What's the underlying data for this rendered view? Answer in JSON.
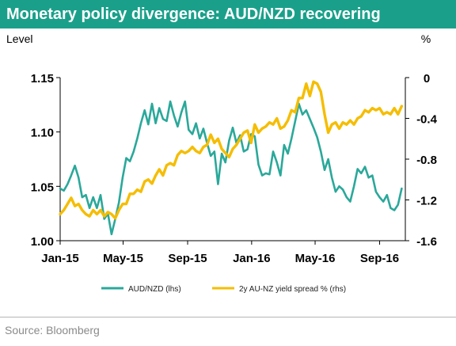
{
  "title": "Monetary policy divergence: AUD/NZD recovering",
  "source": "Source: Bloomberg",
  "colors": {
    "title_bg": "#1aa08a",
    "audnzd": "#2aa89a",
    "spread": "#f5bd00"
  },
  "chart_data": {
    "type": "line",
    "left_axis": {
      "label": "Level",
      "ylim": [
        1.0,
        1.15
      ],
      "ticks": [
        "1.00",
        "1.05",
        "1.10",
        "1.15"
      ],
      "tick_values": [
        1.0,
        1.05,
        1.1,
        1.15
      ]
    },
    "right_axis": {
      "label": "%",
      "ylim": [
        -1.6,
        0
      ],
      "ticks": [
        "-1.6",
        "-1.2",
        "-0.8",
        "-0.4",
        "0"
      ],
      "tick_values": [
        -1.6,
        -1.2,
        -0.8,
        -0.4,
        0
      ]
    },
    "x_range": [
      "2015-01-01",
      "2016-10-20"
    ],
    "x_ticks": [
      {
        "label": "Jan-15",
        "date": "2015-01-01"
      },
      {
        "label": "May-15",
        "date": "2015-05-01"
      },
      {
        "label": "Sep-15",
        "date": "2015-09-01"
      },
      {
        "label": "Jan-16",
        "date": "2016-01-01"
      },
      {
        "label": "May-16",
        "date": "2016-05-01"
      },
      {
        "label": "Sep-16",
        "date": "2016-09-01"
      }
    ],
    "grid": false,
    "legend_position": "bottom",
    "series": [
      {
        "name": "AUD/NZD (lhs)",
        "axis": "left",
        "x": [
          "2015-01-01",
          "2015-01-08",
          "2015-01-15",
          "2015-01-22",
          "2015-01-29",
          "2015-02-05",
          "2015-02-12",
          "2015-02-19",
          "2015-02-26",
          "2015-03-05",
          "2015-03-12",
          "2015-03-19",
          "2015-03-26",
          "2015-04-02",
          "2015-04-09",
          "2015-04-16",
          "2015-04-23",
          "2015-04-30",
          "2015-05-07",
          "2015-05-14",
          "2015-05-21",
          "2015-05-28",
          "2015-06-04",
          "2015-06-11",
          "2015-06-18",
          "2015-06-25",
          "2015-07-02",
          "2015-07-09",
          "2015-07-16",
          "2015-07-23",
          "2015-07-30",
          "2015-08-06",
          "2015-08-13",
          "2015-08-20",
          "2015-08-27",
          "2015-09-03",
          "2015-09-10",
          "2015-09-17",
          "2015-09-24",
          "2015-10-01",
          "2015-10-08",
          "2015-10-15",
          "2015-10-22",
          "2015-10-29",
          "2015-11-05",
          "2015-11-12",
          "2015-11-19",
          "2015-11-26",
          "2015-12-03",
          "2015-12-10",
          "2015-12-17",
          "2015-12-24",
          "2015-12-31",
          "2016-01-07",
          "2016-01-14",
          "2016-01-21",
          "2016-01-28",
          "2016-02-04",
          "2016-02-11",
          "2016-02-18",
          "2016-02-25",
          "2016-03-03",
          "2016-03-10",
          "2016-03-17",
          "2016-03-24",
          "2016-03-31",
          "2016-04-07",
          "2016-04-14",
          "2016-04-21",
          "2016-04-28",
          "2016-05-05",
          "2016-05-12",
          "2016-05-19",
          "2016-05-26",
          "2016-06-02",
          "2016-06-09",
          "2016-06-16",
          "2016-06-23",
          "2016-06-30",
          "2016-07-07",
          "2016-07-14",
          "2016-07-21",
          "2016-07-28",
          "2016-08-04",
          "2016-08-11",
          "2016-08-18",
          "2016-08-25",
          "2016-09-01",
          "2016-09-08",
          "2016-09-15",
          "2016-09-22",
          "2016-09-29",
          "2016-10-06",
          "2016-10-13"
        ],
        "values": [
          1.048,
          1.046,
          1.052,
          1.06,
          1.069,
          1.058,
          1.04,
          1.042,
          1.03,
          1.04,
          1.03,
          1.042,
          1.02,
          1.025,
          1.006,
          1.02,
          1.035,
          1.058,
          1.076,
          1.073,
          1.082,
          1.094,
          1.108,
          1.12,
          1.107,
          1.126,
          1.108,
          1.122,
          1.112,
          1.11,
          1.128,
          1.115,
          1.105,
          1.118,
          1.128,
          1.102,
          1.098,
          1.108,
          1.094,
          1.103,
          1.09,
          1.078,
          1.082,
          1.052,
          1.08,
          1.072,
          1.092,
          1.104,
          1.09,
          1.097,
          1.082,
          1.084,
          1.098,
          1.096,
          1.07,
          1.06,
          1.062,
          1.061,
          1.082,
          1.072,
          1.06,
          1.088,
          1.08,
          1.094,
          1.11,
          1.126,
          1.116,
          1.12,
          1.112,
          1.104,
          1.095,
          1.082,
          1.065,
          1.075,
          1.058,
          1.045,
          1.05,
          1.047,
          1.04,
          1.036,
          1.05,
          1.066,
          1.062,
          1.068,
          1.058,
          1.06,
          1.045,
          1.04,
          1.036,
          1.042,
          1.03,
          1.028,
          1.033,
          1.048
        ]
      },
      {
        "name": "2y AU-NZ yield spread % (rhs)",
        "axis": "right",
        "x": [
          "2015-01-01",
          "2015-01-08",
          "2015-01-15",
          "2015-01-22",
          "2015-01-29",
          "2015-02-05",
          "2015-02-12",
          "2015-02-19",
          "2015-02-26",
          "2015-03-05",
          "2015-03-12",
          "2015-03-19",
          "2015-03-26",
          "2015-04-02",
          "2015-04-09",
          "2015-04-16",
          "2015-04-23",
          "2015-04-30",
          "2015-05-07",
          "2015-05-14",
          "2015-05-21",
          "2015-05-28",
          "2015-06-04",
          "2015-06-11",
          "2015-06-18",
          "2015-06-25",
          "2015-07-02",
          "2015-07-09",
          "2015-07-16",
          "2015-07-23",
          "2015-07-30",
          "2015-08-06",
          "2015-08-13",
          "2015-08-20",
          "2015-08-27",
          "2015-09-03",
          "2015-09-10",
          "2015-09-17",
          "2015-09-24",
          "2015-10-01",
          "2015-10-08",
          "2015-10-15",
          "2015-10-22",
          "2015-10-29",
          "2015-11-05",
          "2015-11-12",
          "2015-11-19",
          "2015-11-26",
          "2015-12-03",
          "2015-12-10",
          "2015-12-17",
          "2015-12-24",
          "2015-12-31",
          "2016-01-07",
          "2016-01-14",
          "2016-01-21",
          "2016-01-28",
          "2016-02-04",
          "2016-02-11",
          "2016-02-18",
          "2016-02-25",
          "2016-03-03",
          "2016-03-10",
          "2016-03-17",
          "2016-03-24",
          "2016-03-31",
          "2016-04-07",
          "2016-04-14",
          "2016-04-21",
          "2016-04-28",
          "2016-05-05",
          "2016-05-12",
          "2016-05-19",
          "2016-05-26",
          "2016-06-02",
          "2016-06-09",
          "2016-06-16",
          "2016-06-23",
          "2016-06-30",
          "2016-07-07",
          "2016-07-14",
          "2016-07-21",
          "2016-07-28",
          "2016-08-04",
          "2016-08-11",
          "2016-08-18",
          "2016-08-25",
          "2016-09-01",
          "2016-09-08",
          "2016-09-15",
          "2016-09-22",
          "2016-09-29",
          "2016-10-06",
          "2016-10-13"
        ],
        "values": [
          -1.34,
          -1.3,
          -1.24,
          -1.18,
          -1.26,
          -1.24,
          -1.3,
          -1.34,
          -1.36,
          -1.3,
          -1.34,
          -1.3,
          -1.36,
          -1.32,
          -1.34,
          -1.38,
          -1.3,
          -1.24,
          -1.24,
          -1.14,
          -1.14,
          -1.1,
          -1.12,
          -1.02,
          -1.0,
          -1.04,
          -0.96,
          -0.9,
          -0.96,
          -0.86,
          -0.84,
          -0.86,
          -0.76,
          -0.72,
          -0.74,
          -0.72,
          -0.68,
          -0.72,
          -0.74,
          -0.68,
          -0.66,
          -0.56,
          -0.64,
          -0.6,
          -0.7,
          -0.74,
          -0.78,
          -0.7,
          -0.66,
          -0.6,
          -0.54,
          -0.52,
          -0.64,
          -0.46,
          -0.54,
          -0.5,
          -0.48,
          -0.44,
          -0.46,
          -0.4,
          -0.5,
          -0.48,
          -0.42,
          -0.32,
          -0.34,
          -0.2,
          -0.2,
          -0.06,
          -0.18,
          -0.04,
          -0.06,
          -0.14,
          -0.36,
          -0.54,
          -0.46,
          -0.44,
          -0.5,
          -0.44,
          -0.46,
          -0.42,
          -0.46,
          -0.4,
          -0.38,
          -0.32,
          -0.34,
          -0.3,
          -0.32,
          -0.3,
          -0.36,
          -0.34,
          -0.36,
          -0.3,
          -0.36,
          -0.28
        ]
      }
    ]
  }
}
